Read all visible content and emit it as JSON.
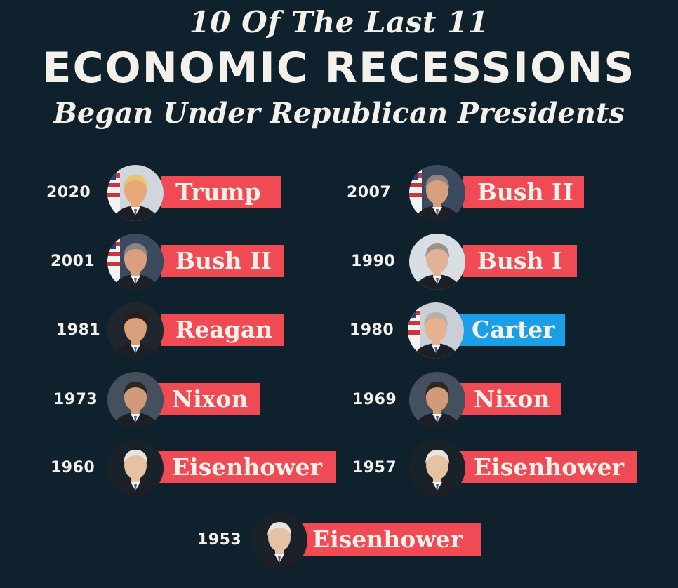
{
  "header": {
    "line1": "10 Of The Last 11",
    "line2": "ECONOMIC RECESSIONS",
    "line3": "Began Under Republican Presidents"
  },
  "colors": {
    "background": "#0f212c",
    "republican": "#f04a55",
    "democrat": "#1a9fe6",
    "text": "#f4f1ea"
  },
  "recessions": [
    {
      "year": "2020",
      "president": "Trump",
      "party": "republican",
      "portrait": "trump-portrait"
    },
    {
      "year": "2007",
      "president": "Bush II",
      "party": "republican",
      "portrait": "bush-ii-portrait"
    },
    {
      "year": "2001",
      "president": "Bush II",
      "party": "republican",
      "portrait": "bush-ii-portrait"
    },
    {
      "year": "1990",
      "president": "Bush I",
      "party": "republican",
      "portrait": "bush-i-portrait"
    },
    {
      "year": "1981",
      "president": "Reagan",
      "party": "republican",
      "portrait": "reagan-portrait"
    },
    {
      "year": "1980",
      "president": "Carter",
      "party": "democrat",
      "portrait": "carter-portrait"
    },
    {
      "year": "1973",
      "president": "Nixon",
      "party": "republican",
      "portrait": "nixon-portrait"
    },
    {
      "year": "1969",
      "president": "Nixon",
      "party": "republican",
      "portrait": "nixon-portrait"
    },
    {
      "year": "1960",
      "president": "Eisenhower",
      "party": "republican",
      "portrait": "eisenhower-portrait"
    },
    {
      "year": "1957",
      "president": "Eisenhower",
      "party": "republican",
      "portrait": "eisenhower-portrait"
    },
    {
      "year": "1953",
      "president": "Eisenhower",
      "party": "republican",
      "portrait": "eisenhower-portrait"
    }
  ]
}
